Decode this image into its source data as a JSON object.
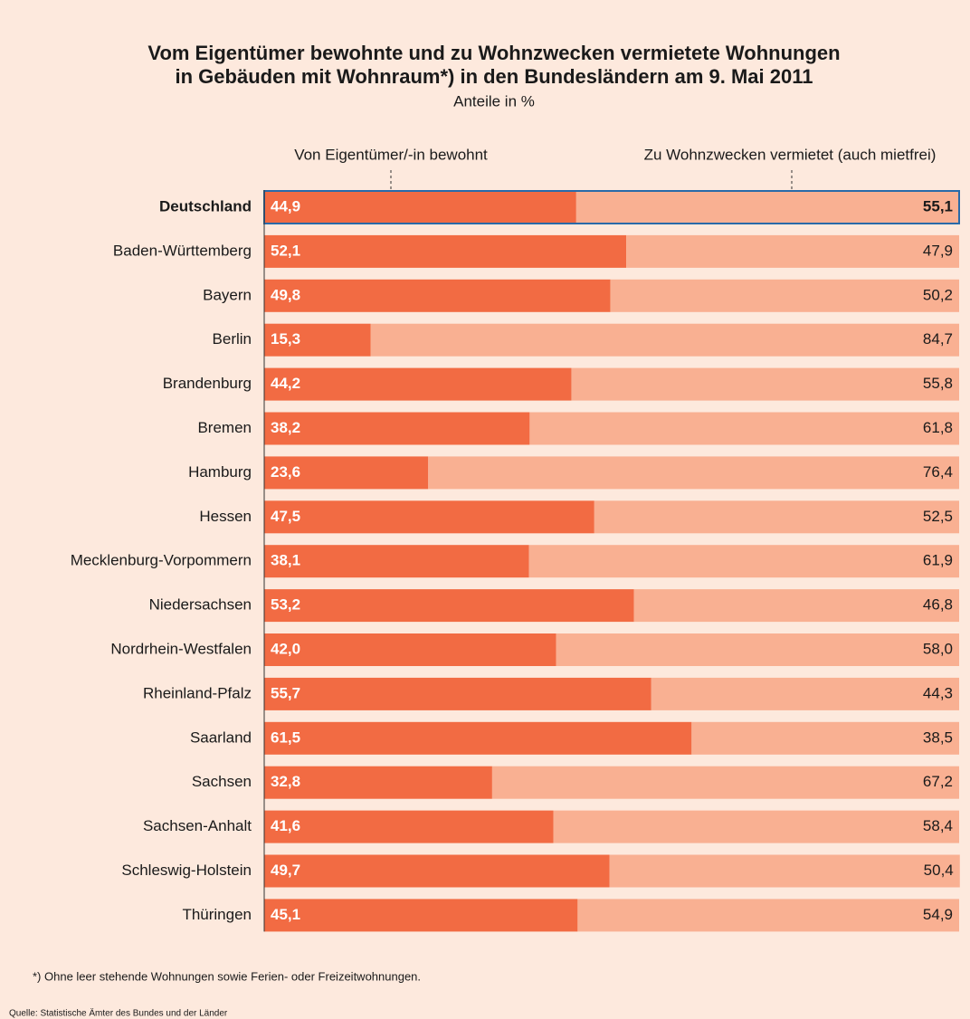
{
  "chart_data": {
    "type": "stacked-bar-horizontal",
    "title": [
      "Vom Eigentümer bewohnte und zu Wohnzwecken vermietete Wohnungen",
      "in Gebäuden mit Wohnraum*) in den Bundesländern am 9. Mai 2011"
    ],
    "subtitle": "Anteile in %",
    "categories": [
      "Deutschland",
      "Baden-Württemberg",
      "Bayern",
      "Berlin",
      "Brandenburg",
      "Bremen",
      "Hamburg",
      "Hessen",
      "Mecklenburg-Vorpommern",
      "Niedersachsen",
      "Nordrhein-Westfalen",
      "Rheinland-Pfalz",
      "Saarland",
      "Sachsen",
      "Sachsen-Anhalt",
      "Schleswig-Holstein",
      "Thüringen"
    ],
    "series": [
      {
        "name": "Von Eigentümer/-in bewohnt",
        "color": "#f26b43",
        "values": [
          44.9,
          52.1,
          49.8,
          15.3,
          44.2,
          38.2,
          23.6,
          47.5,
          38.1,
          53.2,
          42.0,
          55.7,
          61.5,
          32.8,
          41.6,
          49.7,
          45.1
        ],
        "value_labels": [
          "44,9",
          "52,1",
          "49,8",
          "15,3",
          "44,2",
          "38,2",
          "23,6",
          "47,5",
          "38,1",
          "53,2",
          "42,0",
          "55,7",
          "61,5",
          "32,8",
          "41,6",
          "49,7",
          "45,1"
        ]
      },
      {
        "name": "Zu Wohnzwecken vermietet (auch mietfrei)",
        "color": "#f9b092",
        "values": [
          55.1,
          47.9,
          50.2,
          84.7,
          55.8,
          61.8,
          76.4,
          52.5,
          61.9,
          46.8,
          58.0,
          44.3,
          38.5,
          67.2,
          58.4,
          50.4,
          54.9
        ],
        "value_labels": [
          "55,1",
          "47,9",
          "50,2",
          "84,7",
          "55,8",
          "61,8",
          "76,4",
          "52,5",
          "61,9",
          "46,8",
          "58,0",
          "44,3",
          "38,5",
          "67,2",
          "58,4",
          "50,4",
          "54,9"
        ]
      }
    ],
    "xlim": [
      0,
      100
    ],
    "footnote": "*) Ohne leer stehende Wohnungen sowie Ferien- oder Freizeitwohnungen.",
    "source": "Quelle: Statistische Ämter des Bundes und der Länder"
  }
}
